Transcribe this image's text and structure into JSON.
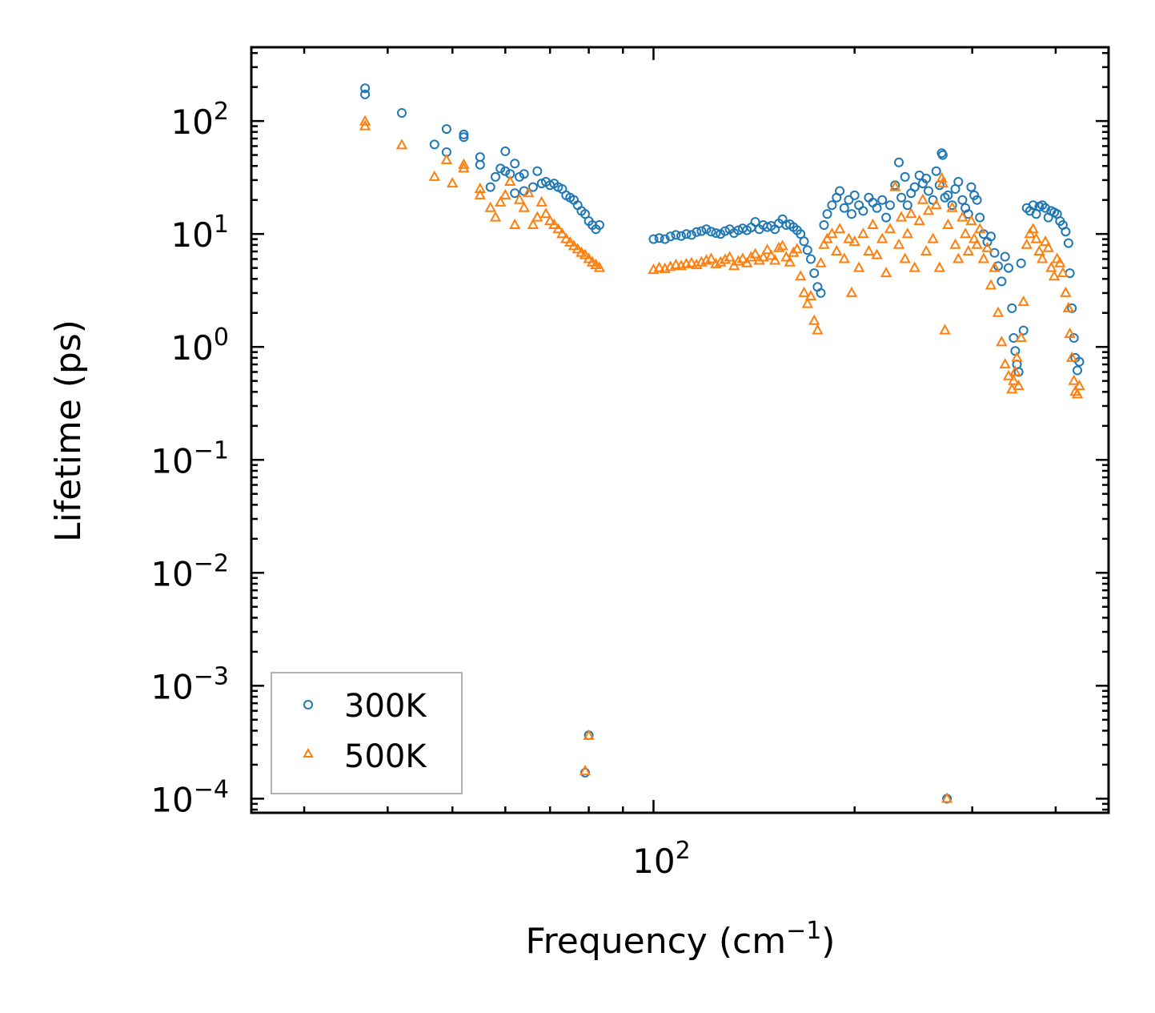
{
  "chart_data": {
    "type": "scatter",
    "title": "",
    "xlabel": "Frequency",
    "xlabel_unit_base": "cm",
    "xlabel_unit_exp": "−1",
    "ylabel": "Lifetime (ps)",
    "xscale": "log",
    "yscale": "log",
    "xlim": [
      25,
      480
    ],
    "ylim": [
      7.5e-05,
      450
    ],
    "x_tick_labels": [
      {
        "value": 100,
        "base": "10",
        "exp": "2"
      }
    ],
    "y_tick_labels": [
      {
        "value": 100,
        "base": "10",
        "exp": "2"
      },
      {
        "value": 10,
        "base": "10",
        "exp": "1"
      },
      {
        "value": 1,
        "base": "10",
        "exp": "0"
      },
      {
        "value": 0.1,
        "base": "10",
        "exp": "−1"
      },
      {
        "value": 0.01,
        "base": "10",
        "exp": "−2"
      },
      {
        "value": 0.001,
        "base": "10",
        "exp": "−3"
      },
      {
        "value": 0.0001,
        "base": "10",
        "exp": "−4"
      }
    ],
    "legend_position": "lower-left",
    "colors": {
      "300K": "#1f77b4",
      "500K": "#ff7f0e",
      "frame": "#000000",
      "legend_border": "#999999"
    },
    "series": [
      {
        "name": "300K",
        "marker": "circle",
        "color": "#1f77b4",
        "points": [
          [
            37,
            195
          ],
          [
            37,
            172
          ],
          [
            42,
            118
          ],
          [
            47,
            62
          ],
          [
            49,
            85
          ],
          [
            49,
            53
          ],
          [
            52,
            76
          ],
          [
            52,
            72
          ],
          [
            55,
            48
          ],
          [
            55,
            41
          ],
          [
            57,
            26
          ],
          [
            58,
            32
          ],
          [
            59,
            38
          ],
          [
            60,
            54
          ],
          [
            60,
            36
          ],
          [
            61,
            34
          ],
          [
            62,
            42
          ],
          [
            62,
            23
          ],
          [
            63,
            32
          ],
          [
            64,
            34
          ],
          [
            64,
            24
          ],
          [
            66,
            26
          ],
          [
            67,
            36
          ],
          [
            68,
            28
          ],
          [
            69,
            29
          ],
          [
            70,
            27
          ],
          [
            71,
            28
          ],
          [
            72,
            26
          ],
          [
            73,
            25
          ],
          [
            74,
            22
          ],
          [
            75,
            21
          ],
          [
            76,
            20
          ],
          [
            77,
            18
          ],
          [
            78,
            16
          ],
          [
            79,
            15
          ],
          [
            80,
            13
          ],
          [
            81,
            12
          ],
          [
            82,
            11
          ],
          [
            83,
            12
          ],
          [
            80,
            0.000365
          ],
          [
            79,
            0.00017
          ],
          [
            100,
            9
          ],
          [
            102,
            9.2
          ],
          [
            104,
            9
          ],
          [
            106,
            9.5
          ],
          [
            108,
            9.8
          ],
          [
            110,
            9.6
          ],
          [
            112,
            10
          ],
          [
            114,
            9.8
          ],
          [
            116,
            10.4
          ],
          [
            118,
            10.6
          ],
          [
            120,
            11
          ],
          [
            122,
            10.5
          ],
          [
            124,
            10.2
          ],
          [
            126,
            10
          ],
          [
            128,
            10.6
          ],
          [
            130,
            11
          ],
          [
            132,
            10.2
          ],
          [
            134,
            10.8
          ],
          [
            136,
            11.2
          ],
          [
            138,
            10.8
          ],
          [
            140,
            11.4
          ],
          [
            142,
            12.8
          ],
          [
            144,
            11
          ],
          [
            146,
            12
          ],
          [
            148,
            11.5
          ],
          [
            150,
            11.8
          ],
          [
            152,
            11
          ],
          [
            154,
            12.4
          ],
          [
            156,
            13.5
          ],
          [
            158,
            12
          ],
          [
            160,
            12.2
          ],
          [
            162,
            11.5
          ],
          [
            164,
            10.8
          ],
          [
            166,
            10
          ],
          [
            168,
            8.6
          ],
          [
            170,
            7.2
          ],
          [
            172,
            6
          ],
          [
            174,
            4.5
          ],
          [
            176,
            3.4
          ],
          [
            178,
            3
          ],
          [
            180,
            12
          ],
          [
            182,
            15
          ],
          [
            185,
            18
          ],
          [
            188,
            21
          ],
          [
            190,
            24
          ],
          [
            193,
            17
          ],
          [
            196,
            20
          ],
          [
            198,
            15
          ],
          [
            200,
            22
          ],
          [
            203,
            18
          ],
          [
            206,
            16
          ],
          [
            210,
            21
          ],
          [
            213,
            19
          ],
          [
            216,
            17
          ],
          [
            220,
            20
          ],
          [
            223,
            14
          ],
          [
            226,
            18
          ],
          [
            230,
            27
          ],
          [
            233,
            43
          ],
          [
            235,
            21
          ],
          [
            238,
            32
          ],
          [
            240,
            18
          ],
          [
            243,
            23
          ],
          [
            246,
            26
          ],
          [
            250,
            33
          ],
          [
            253,
            28
          ],
          [
            256,
            31
          ],
          [
            258,
            24
          ],
          [
            262,
            20
          ],
          [
            265,
            36
          ],
          [
            268,
            27
          ],
          [
            270,
            52
          ],
          [
            271,
            50
          ],
          [
            273,
            21
          ],
          [
            276,
            22
          ],
          [
            280,
            18
          ],
          [
            283,
            25
          ],
          [
            286,
            29
          ],
          [
            290,
            20
          ],
          [
            293,
            17
          ],
          [
            296,
            15
          ],
          [
            299,
            26
          ],
          [
            302,
            22
          ],
          [
            305,
            20
          ],
          [
            308,
            14
          ],
          [
            312,
            10
          ],
          [
            316,
            8.5
          ],
          [
            320,
            9.5
          ],
          [
            324,
            6.8
          ],
          [
            328,
            5.2
          ],
          [
            332,
            3.8
          ],
          [
            336,
            6.3
          ],
          [
            340,
            5
          ],
          [
            344,
            2.2
          ],
          [
            346,
            1.2
          ],
          [
            348,
            0.92
          ],
          [
            350,
            0.7
          ],
          [
            352,
            0.6
          ],
          [
            355,
            5.5
          ],
          [
            358,
            1.4
          ],
          [
            362,
            17
          ],
          [
            366,
            16
          ],
          [
            370,
            18
          ],
          [
            374,
            15
          ],
          [
            378,
            17.5
          ],
          [
            382,
            18
          ],
          [
            386,
            17
          ],
          [
            390,
            14
          ],
          [
            394,
            16
          ],
          [
            398,
            15.5
          ],
          [
            402,
            15
          ],
          [
            406,
            13
          ],
          [
            410,
            12
          ],
          [
            414,
            10.5
          ],
          [
            418,
            8.3
          ],
          [
            420,
            4.5
          ],
          [
            423,
            2.2
          ],
          [
            426,
            1.2
          ],
          [
            428,
            0.8
          ],
          [
            431,
            0.62
          ],
          [
            434,
            0.74
          ],
          [
            275,
            0.0001
          ]
        ]
      },
      {
        "name": "500K",
        "marker": "triangle",
        "color": "#ff7f0e",
        "points": [
          [
            37,
            99
          ],
          [
            37,
            90
          ],
          [
            42,
            61
          ],
          [
            47,
            32
          ],
          [
            49,
            45
          ],
          [
            50,
            28
          ],
          [
            52,
            41
          ],
          [
            52,
            38
          ],
          [
            55,
            25
          ],
          [
            55,
            22
          ],
          [
            57,
            17
          ],
          [
            58,
            14
          ],
          [
            59,
            19
          ],
          [
            60,
            22
          ],
          [
            61,
            29
          ],
          [
            62,
            12
          ],
          [
            63,
            20
          ],
          [
            64,
            17
          ],
          [
            65,
            23
          ],
          [
            66,
            12
          ],
          [
            67,
            14
          ],
          [
            68,
            19
          ],
          [
            69,
            15
          ],
          [
            70,
            13
          ],
          [
            71,
            12
          ],
          [
            72,
            11
          ],
          [
            73,
            10
          ],
          [
            74,
            9
          ],
          [
            75,
            8.4
          ],
          [
            76,
            7.8
          ],
          [
            77,
            7.3
          ],
          [
            78,
            6.8
          ],
          [
            79,
            6.5
          ],
          [
            80,
            6
          ],
          [
            81,
            5.6
          ],
          [
            82,
            5.3
          ],
          [
            83,
            5
          ],
          [
            80,
            0.00036
          ],
          [
            79,
            0.000175
          ],
          [
            100,
            4.8
          ],
          [
            102,
            5
          ],
          [
            104,
            4.9
          ],
          [
            106,
            5.1
          ],
          [
            108,
            5.3
          ],
          [
            110,
            5.2
          ],
          [
            112,
            5.4
          ],
          [
            114,
            5.5
          ],
          [
            116,
            5.3
          ],
          [
            118,
            5.6
          ],
          [
            120,
            5.8
          ],
          [
            122,
            6
          ],
          [
            124,
            5.4
          ],
          [
            126,
            5.6
          ],
          [
            128,
            5.9
          ],
          [
            130,
            6.2
          ],
          [
            132,
            5.2
          ],
          [
            134,
            5.7
          ],
          [
            136,
            6
          ],
          [
            138,
            5.5
          ],
          [
            140,
            6.2
          ],
          [
            142,
            6.6
          ],
          [
            144,
            5.8
          ],
          [
            146,
            6.2
          ],
          [
            148,
            7.2
          ],
          [
            150,
            6.4
          ],
          [
            152,
            5.8
          ],
          [
            154,
            7.5
          ],
          [
            156,
            7.8
          ],
          [
            158,
            6.2
          ],
          [
            160,
            5.6
          ],
          [
            162,
            6.8
          ],
          [
            164,
            7.3
          ],
          [
            166,
            4.2
          ],
          [
            168,
            3
          ],
          [
            170,
            2.4
          ],
          [
            172,
            2.8
          ],
          [
            174,
            1.7
          ],
          [
            176,
            1.4
          ],
          [
            178,
            5.5
          ],
          [
            180,
            8
          ],
          [
            182,
            9
          ],
          [
            185,
            10
          ],
          [
            188,
            7
          ],
          [
            190,
            11
          ],
          [
            193,
            6
          ],
          [
            196,
            9
          ],
          [
            198,
            3
          ],
          [
            200,
            8.5
          ],
          [
            203,
            5
          ],
          [
            206,
            10
          ],
          [
            210,
            7
          ],
          [
            213,
            12
          ],
          [
            216,
            6.5
          ],
          [
            220,
            9
          ],
          [
            223,
            4.5
          ],
          [
            226,
            11
          ],
          [
            230,
            26
          ],
          [
            233,
            8
          ],
          [
            235,
            14
          ],
          [
            238,
            6
          ],
          [
            240,
            10
          ],
          [
            243,
            15
          ],
          [
            246,
            5
          ],
          [
            250,
            13
          ],
          [
            253,
            20
          ],
          [
            256,
            7
          ],
          [
            258,
            16
          ],
          [
            262,
            9
          ],
          [
            265,
            18
          ],
          [
            268,
            5
          ],
          [
            270,
            31
          ],
          [
            271,
            28
          ],
          [
            273,
            1.4
          ],
          [
            276,
            12
          ],
          [
            280,
            17
          ],
          [
            283,
            8
          ],
          [
            286,
            6
          ],
          [
            290,
            14
          ],
          [
            293,
            10
          ],
          [
            296,
            7
          ],
          [
            299,
            13
          ],
          [
            302,
            9
          ],
          [
            305,
            8
          ],
          [
            308,
            11
          ],
          [
            312,
            6
          ],
          [
            316,
            7.5
          ],
          [
            320,
            3.5
          ],
          [
            324,
            5
          ],
          [
            328,
            2
          ],
          [
            332,
            1.1
          ],
          [
            336,
            0.7
          ],
          [
            340,
            0.55
          ],
          [
            344,
            0.42
          ],
          [
            346,
            0.5
          ],
          [
            348,
            0.6
          ],
          [
            350,
            0.8
          ],
          [
            352,
            0.45
          ],
          [
            355,
            1.2
          ],
          [
            358,
            2.5
          ],
          [
            362,
            8
          ],
          [
            366,
            10
          ],
          [
            370,
            11
          ],
          [
            374,
            9
          ],
          [
            378,
            7
          ],
          [
            382,
            6
          ],
          [
            386,
            8.5
          ],
          [
            390,
            7.5
          ],
          [
            394,
            5
          ],
          [
            398,
            4.2
          ],
          [
            402,
            6
          ],
          [
            406,
            5.5
          ],
          [
            410,
            4.5
          ],
          [
            414,
            3
          ],
          [
            418,
            2.2
          ],
          [
            420,
            1.3
          ],
          [
            423,
            0.8
          ],
          [
            426,
            0.5
          ],
          [
            428,
            0.4
          ],
          [
            431,
            0.38
          ],
          [
            434,
            0.45
          ],
          [
            275,
            0.0001
          ]
        ]
      }
    ]
  }
}
